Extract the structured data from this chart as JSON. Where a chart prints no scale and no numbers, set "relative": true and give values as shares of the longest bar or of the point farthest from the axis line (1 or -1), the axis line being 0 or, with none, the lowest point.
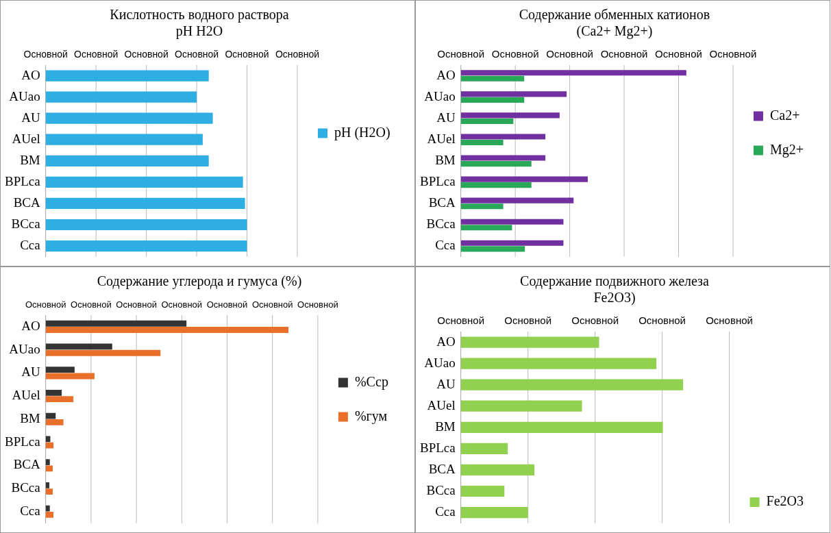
{
  "chart_data": [
    {
      "type": "bar",
      "orientation": "horizontal",
      "relative": true,
      "title": "Кислотность водного раствора\npH H2O",
      "categories": [
        "AO",
        "AUao",
        "AU",
        "AUel",
        "BM",
        "BPLca",
        "BCA",
        "BCca",
        "Cca"
      ],
      "series": [
        {
          "name": "pH (H2O)",
          "color": "#2eaee3",
          "values": [
            0.81,
            0.75,
            0.83,
            0.78,
            0.81,
            0.98,
            0.99,
            1,
            1
          ]
        }
      ],
      "xlim": [
        0,
        1.25
      ],
      "annotations": [
        "Основной",
        "Основной",
        "Основной",
        "Основной",
        "Основной",
        "Основной"
      ],
      "grid": "x",
      "legend": "right"
    },
    {
      "type": "bar",
      "orientation": "horizontal",
      "relative": true,
      "title": "Содержание обменных катионов\n(Ca2+ Mg2+)",
      "categories": [
        "AO",
        "AUao",
        "AU",
        "AUel",
        "BM",
        "BPLca",
        "BCA",
        "BCca",
        "Cca"
      ],
      "series": [
        {
          "name": "Ca2+",
          "color": "#7030a0",
          "values": [
            1,
            0.469,
            0.438,
            0.375,
            0.375,
            0.563,
            0.5,
            0.455,
            0.455
          ]
        },
        {
          "name": "Mg2+",
          "color": "#2aa85a",
          "values": [
            0.281,
            0.281,
            0.233,
            0.188,
            0.313,
            0.313,
            0.188,
            0.227,
            0.284
          ]
        }
      ],
      "xlim": [
        0,
        1.207
      ],
      "annotations": [
        "Основной",
        "Основной",
        "Основной",
        "Основной",
        "Основной",
        "Основной"
      ],
      "grid": "x",
      "legend": "right"
    },
    {
      "type": "bar",
      "orientation": "horizontal",
      "relative": true,
      "title": "Содержание углерода и гумуса (%)",
      "categories": [
        "AO",
        "AUao",
        "AU",
        "AUel",
        "BM",
        "BPLca",
        "BCA",
        "BCca",
        "Cca"
      ],
      "series": [
        {
          "name": "%Сср",
          "color": "#333333",
          "values": [
            0.58,
            0.274,
            0.119,
            0.066,
            0.041,
            0.019,
            0.017,
            0.015,
            0.017
          ]
        },
        {
          "name": "%гум",
          "color": "#e8702a",
          "values": [
            1,
            0.473,
            0.201,
            0.114,
            0.073,
            0.032,
            0.029,
            0.029,
            0.032
          ]
        }
      ],
      "xlim": [
        0,
        1.121
      ],
      "annotations": [
        "Основной",
        "Основной",
        "Основной",
        "Основной",
        "Основной",
        "Основной",
        "Основной"
      ],
      "grid": "x",
      "legend": "right"
    },
    {
      "type": "bar",
      "orientation": "horizontal",
      "relative": true,
      "title": "Содержание подвижного железа\nFe2O3)",
      "categories": [
        "AO",
        "AUao",
        "AU",
        "AUel",
        "BM",
        "BPLca",
        "BCA",
        "BCca",
        "Cca"
      ],
      "series": [
        {
          "name": "Fe2O3",
          "color": "#92d050",
          "values": [
            0.622,
            0.88,
            1,
            0.545,
            0.909,
            0.211,
            0.331,
            0.196,
            0.302
          ]
        }
      ],
      "xlim": [
        0,
        1.208
      ],
      "annotations": [
        "Основной",
        "Основной",
        "Основной",
        "Основной",
        "Основной"
      ],
      "grid": "x",
      "legend": "bottom right"
    }
  ]
}
